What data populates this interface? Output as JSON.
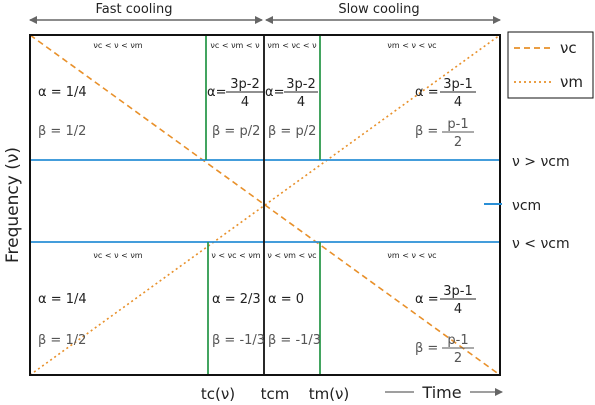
{
  "header": {
    "fast_cooling": "Fast cooling",
    "slow_cooling": "Slow cooling"
  },
  "axis": {
    "y_label": "Frequency (ν)",
    "x_label": "Time",
    "tick_tc": "tc(ν)",
    "tick_tcm": "tcm",
    "tick_tm": "tm(ν)"
  },
  "legend": {
    "nu_c": "νc",
    "nu_m": "νm",
    "nu_c_color": "#e8902a",
    "nu_m_color": "#e8902a"
  },
  "right_labels": {
    "above": "ν > νcm",
    "cm": "νcm",
    "below": "ν < νcm"
  },
  "colors": {
    "frame": "#111111",
    "horizontal": "#2a8fd6",
    "vertical": "#2e9a4f",
    "arrow": "#666666"
  },
  "top_row": {
    "c1": {
      "regime": "νc < ν < νm",
      "alpha": "α = 1/4",
      "beta": "β = 1/2"
    },
    "c2": {
      "regime": "νc < νm < ν",
      "alpha_prefix": "α=",
      "alpha_num": "3p-2",
      "alpha_den": "4",
      "beta": "β = p/2"
    },
    "c3": {
      "regime": "νm < νc < ν",
      "alpha_prefix": "α=",
      "alpha_num": "3p-2",
      "alpha_den": "4",
      "beta": "β = p/2"
    },
    "c4": {
      "regime": "νm < ν < νc",
      "alpha_prefix": "α =",
      "alpha_num": "3p-1",
      "alpha_den": "4",
      "beta_prefix": "β =",
      "beta_num": "p-1",
      "beta_den": "2"
    }
  },
  "bottom_row": {
    "c1": {
      "regime": "νc < ν < νm",
      "alpha": "α = 1/4",
      "beta": "β = 1/2"
    },
    "c2": {
      "regime": "ν < νc < νm",
      "alpha": "α = 2/3",
      "beta": "β = -1/3"
    },
    "c3": {
      "regime": "ν < νm < νc",
      "alpha": "α = 0",
      "beta": "β = -1/3"
    },
    "c4": {
      "regime": "νm < ν < νc",
      "alpha_prefix": "α =",
      "alpha_num": "3p-1",
      "alpha_den": "4",
      "beta_prefix": "β =",
      "beta_num": "p-1",
      "beta_den": "2"
    }
  }
}
